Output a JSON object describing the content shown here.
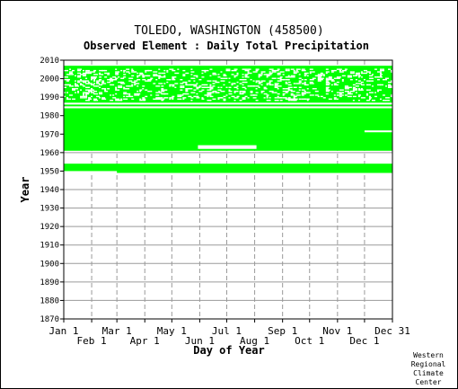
{
  "chart_data": {
    "type": "heatmap",
    "title": "TOLEDO, WASHINGTON   (458500)",
    "subtitle": "Observed Element : Daily Total Precipitation",
    "xlabel": "Day of Year",
    "ylabel": "Year",
    "credit": [
      "Western",
      "Regional",
      "Climate",
      "Center"
    ],
    "xlim": [
      1,
      366
    ],
    "ylim": [
      1870,
      2010
    ],
    "grid": true,
    "x_ticks_row1": [
      {
        "label": "Jan 1",
        "day": 1
      },
      {
        "label": "Mar 1",
        "day": 60
      },
      {
        "label": "May 1",
        "day": 121
      },
      {
        "label": "Jul 1",
        "day": 182
      },
      {
        "label": "Sep 1",
        "day": 244
      },
      {
        "label": "Nov 1",
        "day": 305
      },
      {
        "label": "Dec 31",
        "day": 366
      }
    ],
    "x_ticks_row2": [
      {
        "label": "Feb 1",
        "day": 32
      },
      {
        "label": "Apr 1",
        "day": 91
      },
      {
        "label": "Jun 1",
        "day": 152
      },
      {
        "label": "Aug 1",
        "day": 213
      },
      {
        "label": "Oct 1",
        "day": 274
      },
      {
        "label": "Dec 1",
        "day": 335
      }
    ],
    "y_ticks": [
      1870,
      1880,
      1890,
      1900,
      1910,
      1920,
      1930,
      1940,
      1950,
      1960,
      1970,
      1980,
      1990,
      2000,
      2010
    ],
    "series": [
      {
        "name": "observed",
        "color": "#00ff00",
        "blocks": [
          {
            "year_start": 1949,
            "year_end": 1954,
            "day_start": 1,
            "day_end": 366
          },
          {
            "year_start": 1961,
            "year_end": 1984,
            "day_start": 1,
            "day_end": 366
          },
          {
            "year_start": 1985,
            "year_end": 2007,
            "day_start": 1,
            "day_end": 366
          }
        ],
        "gaps": [
          {
            "year_start": 1949,
            "year_end": 1950,
            "day_start": 1,
            "day_end": 60
          },
          {
            "year_start": 1962,
            "year_end": 1964,
            "day_start": 150,
            "day_end": 215
          },
          {
            "year_start": 1971,
            "year_end": 1972,
            "day_start": 335,
            "day_end": 366
          },
          {
            "year_start": 1986,
            "year_end": 1987,
            "day_start": 1,
            "day_end": 366
          },
          {
            "year_start": 1984,
            "year_end": 1985,
            "day_start": 1,
            "day_end": 366
          }
        ]
      }
    ]
  }
}
